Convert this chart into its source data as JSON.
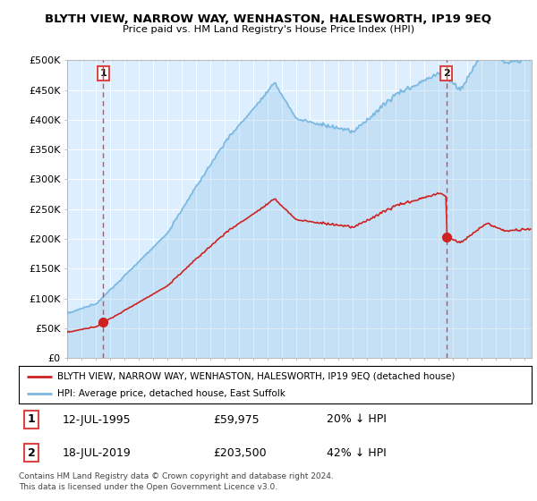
{
  "title": "BLYTH VIEW, NARROW WAY, WENHASTON, HALESWORTH, IP19 9EQ",
  "subtitle": "Price paid vs. HM Land Registry's House Price Index (HPI)",
  "legend_line1": "BLYTH VIEW, NARROW WAY, WENHASTON, HALESWORTH, IP19 9EQ (detached house)",
  "legend_line2": "HPI: Average price, detached house, East Suffolk",
  "footnote": "Contains HM Land Registry data © Crown copyright and database right 2024.\nThis data is licensed under the Open Government Licence v3.0.",
  "sale1_date": "12-JUL-1995",
  "sale1_price": "£59,975",
  "sale1_hpi": "20% ↓ HPI",
  "sale2_date": "18-JUL-2019",
  "sale2_price": "£203,500",
  "sale2_hpi": "42% ↓ HPI",
  "sale1_x": 1995.53,
  "sale1_y": 59975,
  "sale2_x": 2019.53,
  "sale2_y": 203500,
  "hpi_color": "#7ab8e0",
  "price_color": "#cc2222",
  "dashed_color": "#dd4444",
  "bg_color": "#ddeeff",
  "grid_color": "#ffffff",
  "ylim": [
    0,
    500000
  ],
  "xlim": [
    1993.0,
    2025.5
  ],
  "yticks": [
    0,
    50000,
    100000,
    150000,
    200000,
    250000,
    300000,
    350000,
    400000,
    450000,
    500000
  ],
  "ytick_labels": [
    "£0",
    "£50K",
    "£100K",
    "£150K",
    "£200K",
    "£250K",
    "£300K",
    "£350K",
    "£400K",
    "£450K",
    "£500K"
  ],
  "xticks": [
    1993,
    1994,
    1995,
    1996,
    1997,
    1998,
    1999,
    2000,
    2001,
    2002,
    2003,
    2004,
    2005,
    2006,
    2007,
    2008,
    2009,
    2010,
    2011,
    2012,
    2013,
    2014,
    2015,
    2016,
    2017,
    2018,
    2019,
    2020,
    2021,
    2022,
    2023,
    2024,
    2025
  ]
}
